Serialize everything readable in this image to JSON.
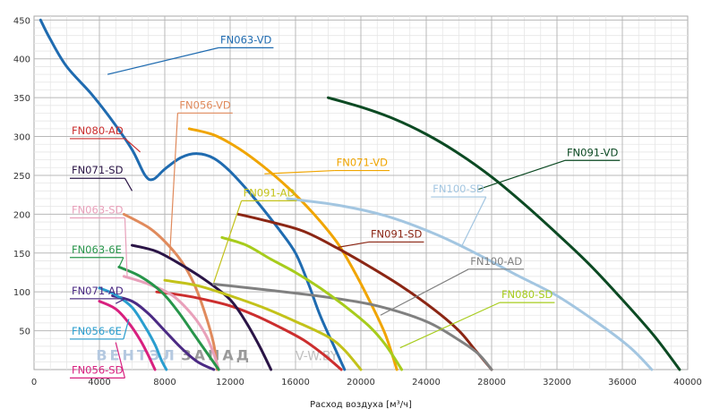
{
  "chart_data": {
    "type": "line",
    "xlabel": "Расход воздуха [м³/ч]",
    "ylabel": "",
    "xlim": [
      0,
      40000
    ],
    "ylim": [
      0,
      455
    ],
    "grid": true,
    "x_ticks": [
      0,
      4000,
      8000,
      12000,
      16000,
      20000,
      24000,
      28000,
      32000,
      36000,
      40000
    ],
    "x_tick_labels": [
      "0",
      "4000",
      "8000",
      "12000",
      "16000",
      "20000",
      "24000",
      "28000",
      "32000",
      "36000",
      "40000"
    ],
    "y_ticks": [
      50,
      100,
      150,
      200,
      250,
      300,
      350,
      400,
      450
    ],
    "y_tick_labels": [
      "50",
      "100",
      "150",
      "200",
      "250",
      "300",
      "350",
      "400",
      "450"
    ],
    "series": [
      {
        "name": "FN063-VD",
        "color": "#1f6bb0",
        "points": [
          [
            400,
            450
          ],
          [
            1000,
            425
          ],
          [
            2000,
            390
          ],
          [
            3500,
            355
          ],
          [
            4800,
            320
          ],
          [
            6000,
            283
          ],
          [
            6800,
            250
          ],
          [
            7300,
            245
          ],
          [
            8000,
            258
          ],
          [
            9000,
            273
          ],
          [
            10000,
            278
          ],
          [
            11000,
            272
          ],
          [
            12000,
            255
          ],
          [
            13500,
            220
          ],
          [
            15000,
            180
          ],
          [
            16000,
            150
          ],
          [
            16800,
            110
          ],
          [
            17500,
            70
          ],
          [
            18400,
            28
          ],
          [
            19000,
            0
          ]
        ],
        "label_at": [
          11400,
          420
        ],
        "anchor": [
          4500,
          380
        ]
      },
      {
        "name": "FN091-VD",
        "color": "#0c4a23",
        "points": [
          [
            18000,
            350
          ],
          [
            20000,
            338
          ],
          [
            22000,
            323
          ],
          [
            24000,
            303
          ],
          [
            26000,
            278
          ],
          [
            28000,
            248
          ],
          [
            30000,
            213
          ],
          [
            32000,
            175
          ],
          [
            34000,
            135
          ],
          [
            36000,
            90
          ],
          [
            38000,
            42
          ],
          [
            39500,
            0
          ]
        ],
        "label_at": [
          32600,
          275
        ],
        "anchor": [
          27200,
          232
        ]
      },
      {
        "name": "FN071-VD",
        "color": "#f0a500",
        "points": [
          [
            9500,
            310
          ],
          [
            11000,
            302
          ],
          [
            12500,
            285
          ],
          [
            14000,
            262
          ],
          [
            15500,
            235
          ],
          [
            17000,
            203
          ],
          [
            18500,
            165
          ],
          [
            19500,
            130
          ],
          [
            20500,
            90
          ],
          [
            21500,
            45
          ],
          [
            22200,
            0
          ]
        ],
        "label_at": [
          18500,
          262
        ],
        "anchor": [
          14100,
          252
        ]
      },
      {
        "name": "FN056-VD",
        "color": "#e08a5c",
        "points": [
          [
            5500,
            200
          ],
          [
            7000,
            183
          ],
          [
            8000,
            165
          ],
          [
            9000,
            140
          ],
          [
            9800,
            110
          ],
          [
            10500,
            70
          ],
          [
            11000,
            32
          ],
          [
            11200,
            0
          ]
        ],
        "label_at": [
          8900,
          336
        ],
        "anchor": [
          8300,
          145
        ]
      },
      {
        "name": "FN080-AD",
        "color": "#cc2e2e",
        "points": [
          [
            7500,
            100
          ],
          [
            9000,
            96
          ],
          [
            10500,
            90
          ],
          [
            12000,
            82
          ],
          [
            13500,
            70
          ],
          [
            15000,
            55
          ],
          [
            16500,
            38
          ],
          [
            17800,
            18
          ],
          [
            18800,
            0
          ]
        ],
        "label_at": [
          2300,
          303
        ],
        "anchor": [
          6500,
          280
        ]
      },
      {
        "name": "FN071-SD",
        "color": "#2a1446",
        "points": [
          [
            6000,
            160
          ],
          [
            7500,
            152
          ],
          [
            9000,
            135
          ],
          [
            10500,
            115
          ],
          [
            12000,
            90
          ],
          [
            13000,
            60
          ],
          [
            13800,
            30
          ],
          [
            14500,
            0
          ]
        ],
        "label_at": [
          2300,
          252
        ],
        "anchor": [
          6000,
          230
        ]
      },
      {
        "name": "FN063-SD",
        "color": "#e8a0ba",
        "points": [
          [
            5500,
            120
          ],
          [
            7000,
            110
          ],
          [
            8500,
            95
          ],
          [
            9700,
            70
          ],
          [
            10500,
            45
          ],
          [
            11000,
            20
          ],
          [
            11300,
            0
          ]
        ],
        "label_at": [
          2300,
          201
        ],
        "anchor": [
          5700,
          120
        ]
      },
      {
        "name": "FN063-6E",
        "color": "#27954a",
        "points": [
          [
            5200,
            132
          ],
          [
            6500,
            120
          ],
          [
            7800,
            100
          ],
          [
            8800,
            75
          ],
          [
            9800,
            45
          ],
          [
            10800,
            15
          ],
          [
            11300,
            0
          ]
        ],
        "label_at": [
          2300,
          150
        ],
        "anchor": [
          5200,
          132
        ]
      },
      {
        "name": "FN071-AD",
        "color": "#4b2a84",
        "points": [
          [
            4800,
            95
          ],
          [
            6000,
            88
          ],
          [
            7000,
            72
          ],
          [
            8000,
            50
          ],
          [
            9000,
            28
          ],
          [
            10000,
            10
          ],
          [
            11000,
            0
          ]
        ],
        "label_at": [
          2300,
          97
        ],
        "anchor": [
          5000,
          85
        ]
      },
      {
        "name": "FN056-6E",
        "color": "#2a9ecf",
        "points": [
          [
            4000,
            105
          ],
          [
            5000,
            96
          ],
          [
            6000,
            80
          ],
          [
            6800,
            55
          ],
          [
            7400,
            32
          ],
          [
            7800,
            12
          ],
          [
            8100,
            0
          ]
        ],
        "label_at": [
          2300,
          45
        ],
        "anchor": [
          5800,
          65
        ]
      },
      {
        "name": "FN056-SD",
        "color": "#d8207f",
        "points": [
          [
            4000,
            88
          ],
          [
            5000,
            78
          ],
          [
            5800,
            60
          ],
          [
            6500,
            38
          ],
          [
            7000,
            18
          ],
          [
            7400,
            0
          ]
        ],
        "label_at": [
          2300,
          -5
        ],
        "anchor": [
          5000,
          35
        ]
      },
      {
        "name": "FN091-AD",
        "color": "#c3c21a",
        "points": [
          [
            8000,
            115
          ],
          [
            10000,
            108
          ],
          [
            12000,
            95
          ],
          [
            14000,
            80
          ],
          [
            16000,
            62
          ],
          [
            18000,
            42
          ],
          [
            19000,
            25
          ],
          [
            20000,
            0
          ]
        ],
        "label_at": [
          12800,
          223
        ],
        "anchor": [
          11000,
          112
        ]
      },
      {
        "name": "FN091-SD",
        "color": "#8b2614",
        "points": [
          [
            12500,
            200
          ],
          [
            14500,
            190
          ],
          [
            16500,
            178
          ],
          [
            18500,
            157
          ],
          [
            20500,
            133
          ],
          [
            22500,
            107
          ],
          [
            24500,
            77
          ],
          [
            26000,
            50
          ],
          [
            27000,
            25
          ],
          [
            28000,
            0
          ]
        ],
        "label_at": [
          20600,
          170
        ],
        "anchor": [
          18500,
          157
        ]
      },
      {
        "name": "FN100-SD",
        "color": "#a3c6e1",
        "points": [
          [
            15500,
            220
          ],
          [
            18500,
            212
          ],
          [
            21500,
            198
          ],
          [
            24500,
            175
          ],
          [
            27000,
            150
          ],
          [
            29500,
            122
          ],
          [
            32000,
            95
          ],
          [
            34500,
            60
          ],
          [
            36500,
            28
          ],
          [
            37800,
            0
          ]
        ],
        "label_at": [
          24400,
          228
        ],
        "anchor": [
          26200,
          160
        ]
      },
      {
        "name": "FN100-AD",
        "color": "#808080",
        "points": [
          [
            11000,
            110
          ],
          [
            14500,
            102
          ],
          [
            18000,
            93
          ],
          [
            21000,
            82
          ],
          [
            24000,
            62
          ],
          [
            26000,
            38
          ],
          [
            27200,
            20
          ],
          [
            28000,
            0
          ]
        ],
        "label_at": [
          26700,
          135
        ],
        "anchor": [
          21200,
          70
        ]
      },
      {
        "name": "FN080-SD",
        "color": "#a7cc1c",
        "points": [
          [
            11500,
            170
          ],
          [
            13000,
            160
          ],
          [
            14500,
            142
          ],
          [
            16000,
            125
          ],
          [
            17500,
            105
          ],
          [
            19000,
            82
          ],
          [
            20500,
            56
          ],
          [
            21500,
            32
          ],
          [
            22500,
            0
          ]
        ],
        "label_at": [
          28600,
          92
        ],
        "anchor": [
          22400,
          28
        ]
      }
    ],
    "watermark": "ВЕНТЭЛЗАПАД",
    "watermark_split": [
      "ВЕНТЭЛ",
      "ЗАПАД"
    ],
    "watermark_url": "V-W.BY"
  }
}
